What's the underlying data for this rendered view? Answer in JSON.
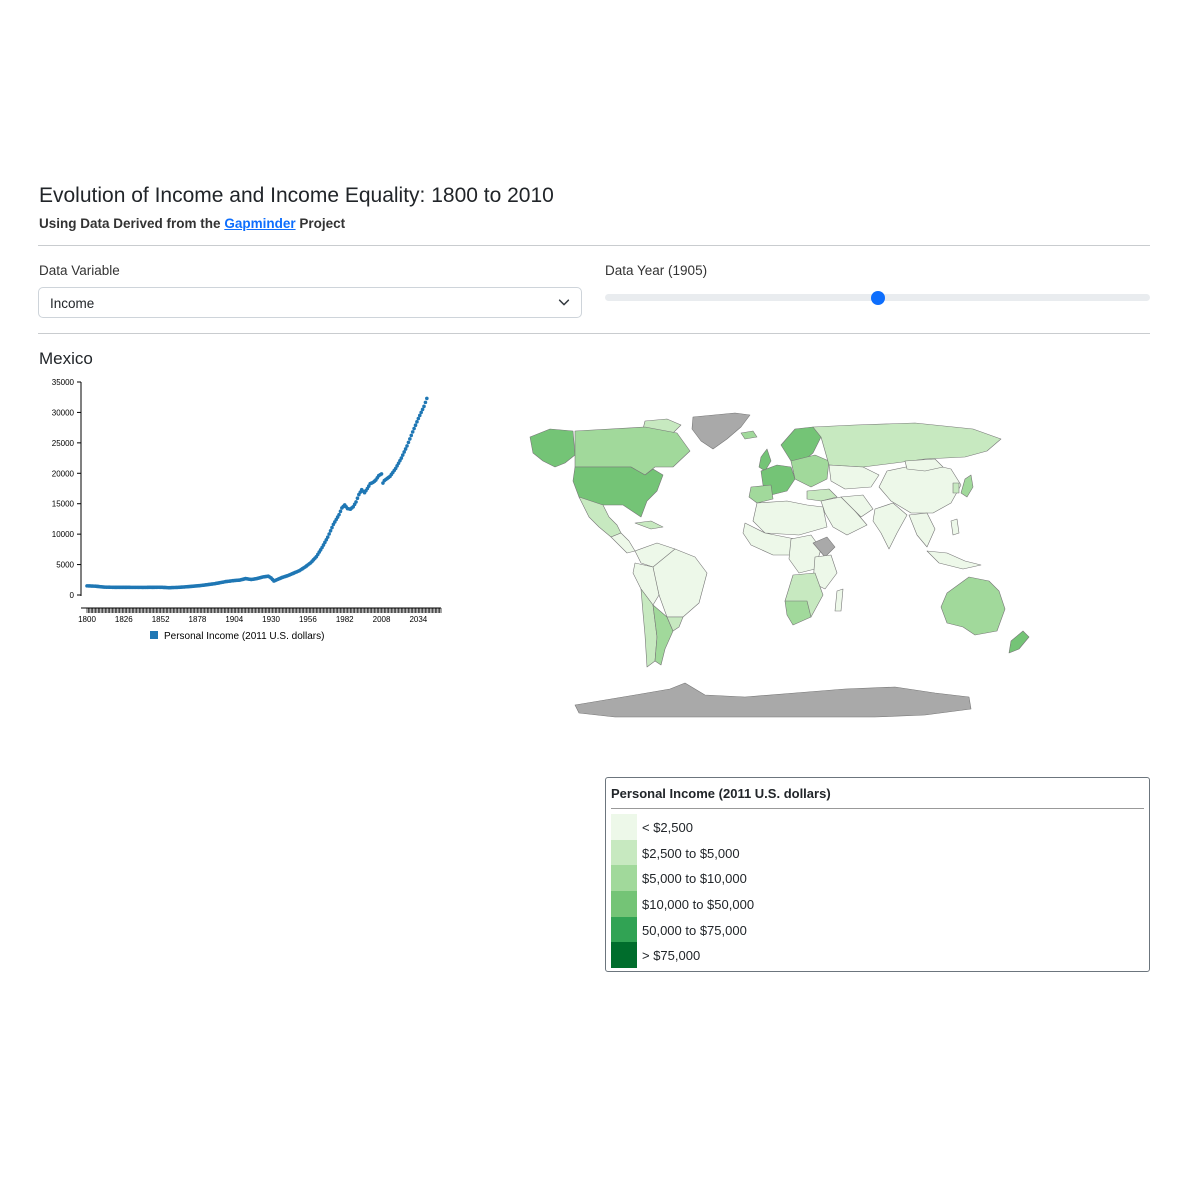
{
  "header": {
    "title": "Evolution of Income and Income Equality: 1800 to 2010",
    "subtitle_prefix": "Using Data Derived from the",
    "subtitle_link": "Gapminder",
    "subtitle_suffix": "Project"
  },
  "controls": {
    "variable_label": "Data Variable",
    "variable_value": "Income",
    "year_label": "Data Year (1905)",
    "year_value": 1905,
    "year_min": 1800,
    "year_max": 2010
  },
  "country": "Mexico",
  "chart_data": {
    "type": "scatter",
    "title": "",
    "xlabel": "",
    "ylabel": "",
    "xlim": [
      1800,
      2050
    ],
    "ylim": [
      0,
      35000
    ],
    "x_ticks": [
      "1800",
      "1826",
      "1852",
      "1878",
      "1904",
      "1930",
      "1956",
      "1982",
      "2008",
      "2034"
    ],
    "y_ticks": [
      "0",
      "5000",
      "10000",
      "15000",
      "20000",
      "25000",
      "30000",
      "35000"
    ],
    "legend": "bottom",
    "color": "#1f77b4",
    "series": [
      {
        "name": "Personal Income (2011 U.S. dollars)",
        "anchors": [
          [
            1800,
            1500
          ],
          [
            1806,
            1450
          ],
          [
            1812,
            1300
          ],
          [
            1820,
            1260
          ],
          [
            1840,
            1250
          ],
          [
            1852,
            1270
          ],
          [
            1858,
            1200
          ],
          [
            1864,
            1250
          ],
          [
            1872,
            1380
          ],
          [
            1880,
            1550
          ],
          [
            1890,
            1850
          ],
          [
            1898,
            2200
          ],
          [
            1904,
            2380
          ],
          [
            1908,
            2450
          ],
          [
            1912,
            2700
          ],
          [
            1916,
            2550
          ],
          [
            1920,
            2700
          ],
          [
            1924,
            2950
          ],
          [
            1928,
            3100
          ],
          [
            1930,
            2800
          ],
          [
            1932,
            2300
          ],
          [
            1934,
            2500
          ],
          [
            1938,
            2900
          ],
          [
            1942,
            3200
          ],
          [
            1946,
            3600
          ],
          [
            1950,
            4000
          ],
          [
            1954,
            4600
          ],
          [
            1958,
            5300
          ],
          [
            1962,
            6300
          ],
          [
            1966,
            7800
          ],
          [
            1970,
            9500
          ],
          [
            1974,
            11600
          ],
          [
            1978,
            13200
          ],
          [
            1980,
            14300
          ],
          [
            1982,
            14800
          ],
          [
            1984,
            14200
          ],
          [
            1986,
            14100
          ],
          [
            1988,
            14500
          ],
          [
            1990,
            15300
          ],
          [
            1992,
            16500
          ],
          [
            1994,
            17300
          ],
          [
            1996,
            16800
          ],
          [
            1998,
            17500
          ],
          [
            2000,
            18300
          ],
          [
            2002,
            18500
          ],
          [
            2004,
            18900
          ],
          [
            2006,
            19600
          ],
          [
            2008,
            19900
          ],
          [
            2009,
            18400
          ],
          [
            2010,
            18800
          ],
          [
            2014,
            19500
          ],
          [
            2018,
            20800
          ],
          [
            2022,
            22500
          ],
          [
            2026,
            24500
          ],
          [
            2030,
            26800
          ],
          [
            2034,
            29000
          ],
          [
            2038,
            31000
          ],
          [
            2040,
            32300
          ]
        ]
      }
    ]
  },
  "map": {
    "colors": {
      "c1": "#edf8e9",
      "c2": "#c7e9c0",
      "c3": "#a1d99b",
      "c4": "#74c476",
      "c5": "#31a354",
      "c6": "#006d2c",
      "nodata": "#a9a9a9",
      "border": "#777777"
    }
  },
  "legend": {
    "title": "Personal Income (2011 U.S. dollars)",
    "items": [
      {
        "label": "< $2,500",
        "color": "#edf8e9"
      },
      {
        "label": "$2,500 to $5,000",
        "color": "#c7e9c0"
      },
      {
        "label": "$5,000 to $10,000",
        "color": "#a1d99b"
      },
      {
        "label": "$10,000 to $50,000",
        "color": "#74c476"
      },
      {
        "label": "50,000 to $75,000",
        "color": "#31a354"
      },
      {
        "label": "> $75,000",
        "color": "#006d2c"
      }
    ]
  }
}
